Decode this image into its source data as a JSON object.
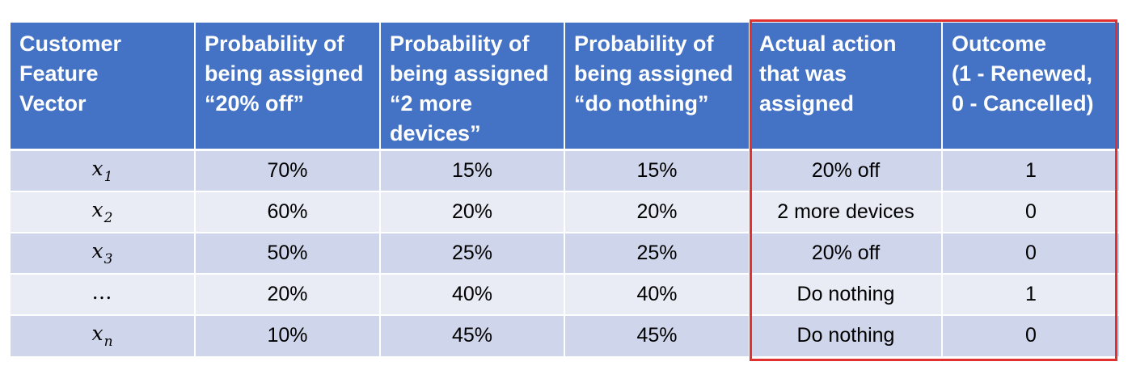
{
  "table": {
    "headers": [
      "Customer\nFeature\nVector",
      "Probability of\nbeing assigned\n“20% off”",
      "Probability of\nbeing assigned\n“2 more\ndevices”",
      "Probability of\nbeing assigned\n“do nothing”",
      "Actual action\nthat was\nassigned",
      "Outcome\n(1 - Renewed,\n0 - Cancelled)"
    ],
    "rows": [
      {
        "vector": {
          "base": "x",
          "sub": "1"
        },
        "p_20off": "70%",
        "p_2more": "15%",
        "p_nothing": "15%",
        "action": "20% off",
        "outcome": "1"
      },
      {
        "vector": {
          "base": "x",
          "sub": "2"
        },
        "p_20off": "60%",
        "p_2more": "20%",
        "p_nothing": "20%",
        "action": "2 more devices",
        "outcome": "0"
      },
      {
        "vector": {
          "base": "x",
          "sub": "3"
        },
        "p_20off": "50%",
        "p_2more": "25%",
        "p_nothing": "25%",
        "action": "20% off",
        "outcome": "0"
      },
      {
        "vector": {
          "base": "…",
          "sub": ""
        },
        "p_20off": "20%",
        "p_2more": "40%",
        "p_nothing": "40%",
        "action": "Do nothing",
        "outcome": "1"
      },
      {
        "vector": {
          "base": "x",
          "sub": "n"
        },
        "p_20off": "10%",
        "p_2more": "45%",
        "p_nothing": "45%",
        "action": "Do nothing",
        "outcome": "0"
      }
    ]
  },
  "colors": {
    "header_bg": "#4472c4",
    "row_dark": "#cfd5ea",
    "row_light": "#e9ebf5",
    "highlight_border": "#e03030"
  }
}
